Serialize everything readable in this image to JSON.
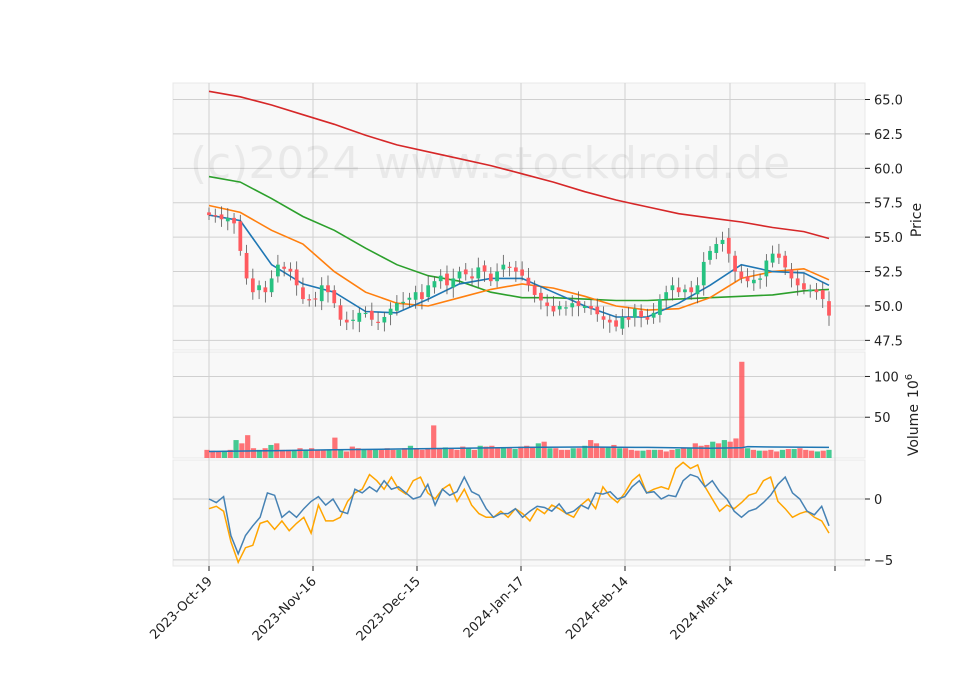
{
  "chart_data": {
    "type": "candlestick",
    "watermark": "(c)2024 www.stockdroid.de",
    "x_ticks": [
      "2023-Oct-19",
      "2023-Nov-16",
      "2023-Dec-15",
      "2024-Jan-17",
      "2024-Feb-14",
      "2024-Mar-14"
    ],
    "colors": {
      "up": "#26c281",
      "down": "#ff5a5f",
      "ma_short": "#1f77b4",
      "ma_mid": "#ff7f0e",
      "ma_long": "#2ca02c",
      "ma_200": "#d62728",
      "osc_a": "#4682b4",
      "osc_b": "#ffa500"
    },
    "price": {
      "ylabel": "Price",
      "ylim": [
        46.8,
        66.2
      ],
      "ticks": [
        "47.5",
        "50.0",
        "52.5",
        "55.0",
        "57.5",
        "60.0",
        "62.5",
        "65.0"
      ],
      "close_approx": [
        56.6,
        56.5,
        56.3,
        56.4,
        56.0,
        54.0,
        52.0,
        51.0,
        51.5,
        51.0,
        52.0,
        53.0,
        52.7,
        52.5,
        51.5,
        50.5,
        50.4,
        50.5,
        51.5,
        51.0,
        50.2,
        49.0,
        48.8,
        49.0,
        49.5,
        49.5,
        49.0,
        48.8,
        49.2,
        49.8,
        50.2,
        50.3,
        50.6,
        51.0,
        50.5,
        51.5,
        51.8,
        52.2,
        51.5,
        52.0,
        52.5,
        52.3,
        52.0,
        52.8,
        52.5,
        51.8,
        52.5,
        53.0,
        52.8,
        52.5,
        52.2,
        51.5,
        50.8,
        50.4,
        50.0,
        49.6,
        50.0,
        49.9,
        50.2,
        50.0,
        50.0,
        49.8,
        49.4,
        49.0,
        48.8,
        48.5,
        49.2,
        49.0,
        49.8,
        49.2,
        49.0,
        49.5,
        50.5,
        51.0,
        51.5,
        51.0,
        51.2,
        51.0,
        51.5,
        53.2,
        54.0,
        54.5,
        54.8,
        53.8,
        52.5,
        52.0,
        51.8,
        51.9,
        52.0,
        53.3,
        53.8,
        53.5,
        52.8,
        52.0,
        51.5,
        51.2,
        51.2,
        51.0,
        50.5,
        49.3
      ],
      "ma_short": [
        [
          0,
          56.6
        ],
        [
          5,
          56.2
        ],
        [
          10,
          53.0
        ],
        [
          15,
          51.6
        ],
        [
          20,
          51.0
        ],
        [
          25,
          49.6
        ],
        [
          30,
          49.5
        ],
        [
          35,
          50.5
        ],
        [
          40,
          51.6
        ],
        [
          45,
          52.0
        ],
        [
          50,
          52.0
        ],
        [
          55,
          51.0
        ],
        [
          60,
          50.0
        ],
        [
          65,
          49.2
        ],
        [
          70,
          49.2
        ],
        [
          75,
          50.2
        ],
        [
          80,
          51.5
        ],
        [
          85,
          53.0
        ],
        [
          90,
          52.5
        ],
        [
          95,
          52.4
        ],
        [
          99,
          51.5
        ]
      ],
      "ma_mid": [
        [
          0,
          57.3
        ],
        [
          5,
          56.8
        ],
        [
          10,
          55.5
        ],
        [
          15,
          54.5
        ],
        [
          20,
          52.5
        ],
        [
          25,
          51.0
        ],
        [
          30,
          50.2
        ],
        [
          35,
          50.0
        ],
        [
          40,
          50.6
        ],
        [
          45,
          51.2
        ],
        [
          50,
          51.6
        ],
        [
          55,
          51.3
        ],
        [
          60,
          50.7
        ],
        [
          65,
          50.0
        ],
        [
          70,
          49.7
        ],
        [
          75,
          49.8
        ],
        [
          80,
          50.6
        ],
        [
          85,
          52.0
        ],
        [
          90,
          52.5
        ],
        [
          95,
          52.7
        ],
        [
          99,
          51.9
        ]
      ],
      "ma_long": [
        [
          0,
          59.4
        ],
        [
          5,
          59.0
        ],
        [
          10,
          57.8
        ],
        [
          15,
          56.5
        ],
        [
          20,
          55.5
        ],
        [
          25,
          54.2
        ],
        [
          30,
          53.0
        ],
        [
          35,
          52.2
        ],
        [
          40,
          51.8
        ],
        [
          45,
          51.0
        ],
        [
          50,
          50.6
        ],
        [
          55,
          50.6
        ],
        [
          60,
          50.5
        ],
        [
          65,
          50.4
        ],
        [
          70,
          50.4
        ],
        [
          75,
          50.5
        ],
        [
          80,
          50.6
        ],
        [
          85,
          50.7
        ],
        [
          90,
          50.8
        ],
        [
          95,
          51.1
        ],
        [
          99,
          51.2
        ]
      ],
      "ma_200": [
        [
          0,
          65.6
        ],
        [
          5,
          65.2
        ],
        [
          10,
          64.6
        ],
        [
          15,
          63.9
        ],
        [
          20,
          63.2
        ],
        [
          25,
          62.4
        ],
        [
          30,
          61.7
        ],
        [
          35,
          61.2
        ],
        [
          40,
          60.7
        ],
        [
          45,
          60.2
        ],
        [
          50,
          59.6
        ],
        [
          55,
          59.0
        ],
        [
          60,
          58.3
        ],
        [
          65,
          57.7
        ],
        [
          70,
          57.2
        ],
        [
          75,
          56.7
        ],
        [
          80,
          56.4
        ],
        [
          85,
          56.1
        ],
        [
          90,
          55.7
        ],
        [
          95,
          55.4
        ],
        [
          99,
          54.9
        ]
      ]
    },
    "volume": {
      "ylabel": "Volume",
      "unit_label": "10",
      "unit_exp": "6",
      "ylim": [
        0,
        130
      ],
      "ticks": [
        "50",
        "100"
      ],
      "bars_approx": [
        10,
        9,
        8,
        9,
        10,
        22,
        18,
        28,
        12,
        10,
        12,
        16,
        18,
        10,
        10,
        10,
        12,
        10,
        12,
        10,
        10,
        10,
        25,
        10,
        8,
        14,
        12,
        10,
        11,
        10,
        10,
        12,
        10,
        10,
        12,
        15,
        12,
        10,
        12,
        40,
        12,
        13,
        12,
        10,
        14,
        12,
        10,
        15,
        14,
        15,
        13,
        12,
        12,
        11,
        14,
        15,
        14,
        18,
        20,
        12,
        12,
        10,
        10,
        12,
        12,
        15,
        22,
        18,
        13,
        14,
        16,
        12,
        12,
        10,
        9,
        9,
        10,
        10,
        10,
        8,
        10,
        11,
        12,
        12,
        18,
        15,
        16,
        20,
        18,
        22,
        20,
        24,
        118,
        12,
        10,
        9,
        9,
        10,
        8,
        10,
        11,
        11,
        12,
        10,
        9,
        8,
        9,
        10
      ],
      "ma": [
        [
          0,
          8
        ],
        [
          10,
          9
        ],
        [
          20,
          10
        ],
        [
          30,
          11
        ],
        [
          40,
          12
        ],
        [
          50,
          13
        ],
        [
          60,
          13.5
        ],
        [
          70,
          13
        ],
        [
          80,
          12
        ],
        [
          85,
          12.5
        ],
        [
          86,
          14
        ],
        [
          90,
          13.5
        ],
        [
          99,
          13
        ]
      ]
    },
    "oscillator": {
      "ylim": [
        -5.5,
        3.2
      ],
      "ticks": [
        "0",
        "−5"
      ],
      "line_a": [
        0.0,
        -0.3,
        0.2,
        -3.0,
        -4.5,
        -3.0,
        -2.2,
        -1.5,
        0.5,
        0.3,
        -1.5,
        -1.0,
        -1.5,
        -0.8,
        -0.2,
        0.2,
        -0.5,
        0.0,
        -1.0,
        -1.2,
        0.8,
        0.5,
        1.0,
        0.6,
        1.5,
        0.8,
        1.0,
        0.5,
        0.0,
        0.2,
        1.2,
        -0.5,
        0.8,
        0.3,
        0.6,
        1.8,
        0.6,
        0.3,
        -0.8,
        -1.5,
        -1.2,
        -1.2,
        -0.8,
        -1.5,
        -1.0,
        -0.6,
        -0.7,
        -1.0,
        -0.4,
        -1.2,
        -1.0,
        -0.5,
        -0.8,
        0.5,
        0.4,
        0.6,
        0.0,
        0.2,
        1.0,
        1.5,
        0.5,
        0.6,
        0.0,
        0.3,
        0.2,
        1.5,
        2.0,
        1.8,
        1.0,
        1.5,
        0.6,
        0.0,
        -1.0,
        -1.5,
        -1.0,
        -0.8,
        -0.3,
        0.3,
        1.2,
        1.8,
        0.5,
        0.0,
        -1.0,
        -1.3,
        -0.6,
        -2.2
      ],
      "line_b": [
        -0.8,
        -0.6,
        -1.0,
        -3.5,
        -5.2,
        -4.0,
        -3.8,
        -2.0,
        -1.8,
        -2.5,
        -1.8,
        -2.6,
        -2.0,
        -1.5,
        -2.8,
        -0.5,
        -1.8,
        -1.8,
        -1.5,
        -0.2,
        0.5,
        0.8,
        2.0,
        1.5,
        0.8,
        1.8,
        0.8,
        0.4,
        1.5,
        1.8,
        0.5,
        0.0,
        0.8,
        1.2,
        -0.2,
        0.8,
        -0.5,
        -1.2,
        -1.5,
        -1.5,
        -1.0,
        -1.5,
        -0.8,
        -1.2,
        -1.8,
        -0.8,
        -1.2,
        -0.5,
        -0.8,
        -1.2,
        -1.5,
        -0.5,
        0.0,
        -0.8,
        1.0,
        0.2,
        -0.3,
        0.5,
        1.5,
        2.0,
        0.5,
        0.8,
        1.0,
        0.8,
        2.5,
        3.0,
        2.5,
        2.8,
        1.0,
        0.0,
        -1.0,
        -0.5,
        -0.8,
        -0.3,
        0.3,
        0.5,
        1.5,
        1.8,
        -0.2,
        -0.8,
        -1.5,
        -1.2,
        -1.0,
        -1.5,
        -1.8,
        -2.8
      ]
    }
  }
}
